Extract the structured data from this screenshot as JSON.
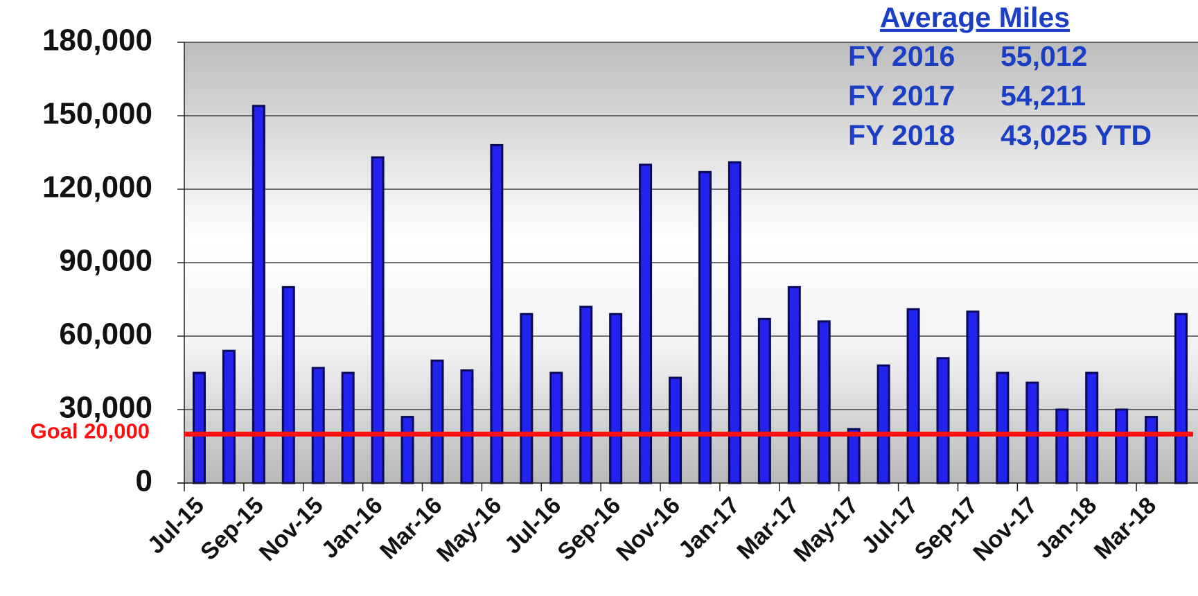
{
  "chart_data": {
    "type": "bar",
    "categories": [
      "Jul-15",
      null,
      "Sep-15",
      null,
      "Nov-15",
      null,
      "Jan-16",
      null,
      "Mar-16",
      null,
      "May-16",
      null,
      "Jul-16",
      null,
      "Sep-16",
      null,
      "Nov-16",
      null,
      "Jan-17",
      null,
      "Mar-17",
      null,
      "May-17",
      null,
      "Jul-17",
      null,
      "Sep-17",
      null,
      "Nov-17",
      null,
      "Jan-18",
      null,
      "Mar-18",
      null
    ],
    "values": [
      45000,
      54000,
      154000,
      80000,
      47000,
      45000,
      133000,
      27000,
      50000,
      46000,
      138000,
      69000,
      45000,
      72000,
      69000,
      130000,
      43000,
      127000,
      131000,
      67000,
      80000,
      66000,
      22000,
      48000,
      71000,
      51000,
      70000,
      45000,
      41000,
      30000,
      45000,
      30000,
      27000,
      69000
    ],
    "color": "#2323f0",
    "ylim": [
      0,
      180000
    ],
    "yticks": [
      0,
      {
        "value": 30000,
        "label": "30,000"
      },
      {
        "value": 60000,
        "label": "60,000"
      },
      {
        "value": 90000,
        "label": "90,000"
      },
      {
        "value": 120000,
        "label": "120,000"
      },
      {
        "value": 150000,
        "label": "150,000"
      },
      {
        "value": 180000,
        "label": "180,000"
      }
    ],
    "grid": true,
    "goal": {
      "value": 20000,
      "label": "Goal 20,000",
      "color": "#ff1010"
    },
    "annotation": {
      "title": "Average Miles",
      "rows": [
        [
          "FY 2016",
          "55,012"
        ],
        [
          "FY 2017",
          "54,211"
        ],
        [
          "FY 2018",
          "43,025 YTD"
        ]
      ]
    }
  }
}
